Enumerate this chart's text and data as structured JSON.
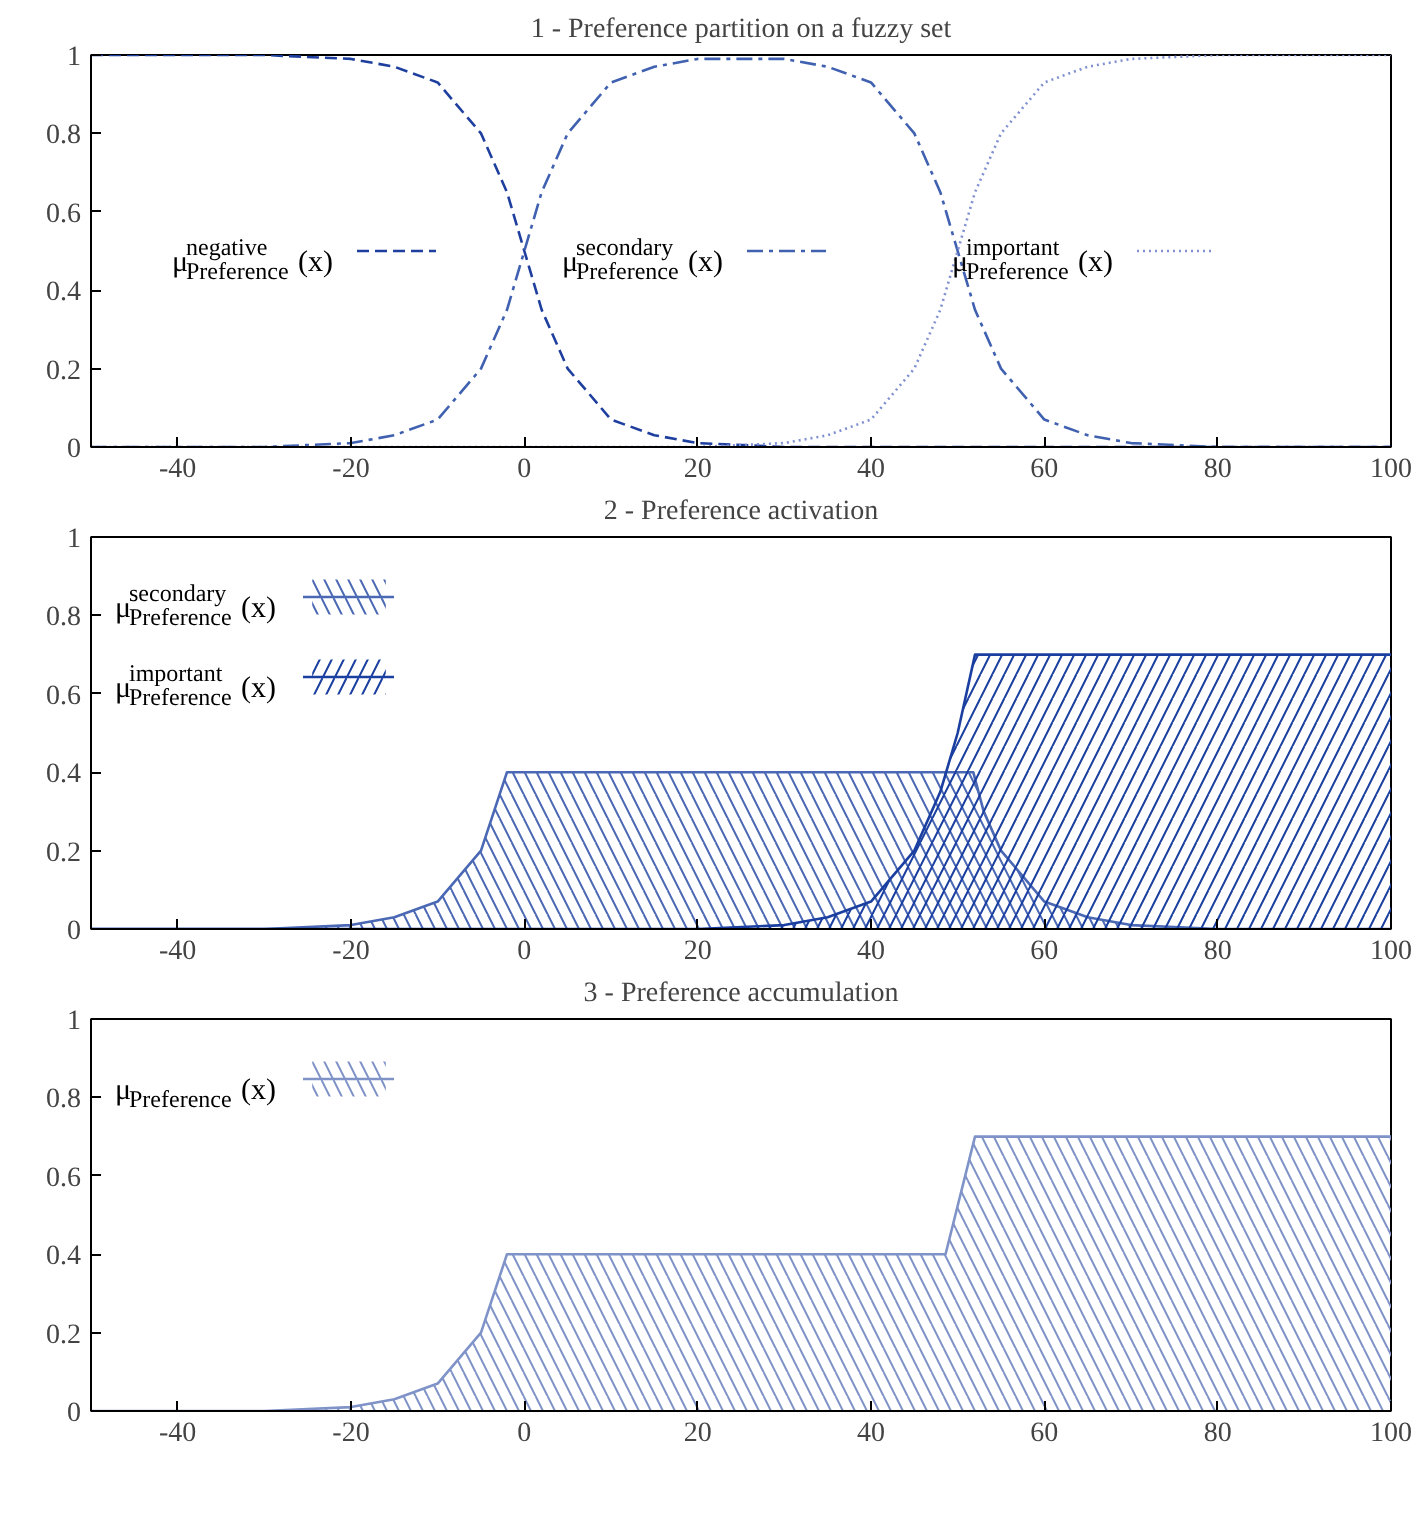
{
  "chart_data": [
    {
      "type": "line",
      "title": "1 - Preference partition on a fuzzy set",
      "xlim": [
        -50,
        100
      ],
      "ylim": [
        0,
        1
      ],
      "xticks": [
        -40,
        -20,
        0,
        20,
        40,
        60,
        80,
        100
      ],
      "yticks": [
        0,
        0.2,
        0.4,
        0.6,
        0.8,
        1
      ],
      "grid": false,
      "legend": "center",
      "series": [
        {
          "name": "μ$^{negative}$$_{Preference}$(x)",
          "color": "#1f3f9f",
          "line_style": "dashed",
          "x": [
            -50,
            -30,
            -20,
            -15,
            -10,
            -5,
            -2,
            0,
            2,
            5,
            10,
            15,
            20,
            30,
            100
          ],
          "values": [
            1,
            1,
            0.99,
            0.97,
            0.93,
            0.8,
            0.65,
            0.5,
            0.35,
            0.2,
            0.07,
            0.03,
            0.01,
            0,
            0
          ]
        },
        {
          "name": "μ$^{secondary}$$_{Preference}$(x)",
          "color": "#4060b0",
          "line_style": "dashdot",
          "x": [
            -50,
            -30,
            -20,
            -15,
            -10,
            -5,
            -2,
            0,
            2,
            5,
            10,
            15,
            20,
            30,
            35,
            40,
            45,
            48,
            50,
            52,
            55,
            60,
            65,
            70,
            80,
            100
          ],
          "values": [
            0,
            0,
            0.01,
            0.03,
            0.07,
            0.2,
            0.35,
            0.5,
            0.65,
            0.8,
            0.93,
            0.97,
            0.99,
            0.99,
            0.97,
            0.93,
            0.8,
            0.65,
            0.5,
            0.35,
            0.2,
            0.07,
            0.03,
            0.01,
            0,
            0
          ]
        },
        {
          "name": "μ$^{important}$$_{Preference}$(x)",
          "color": "#8090d0",
          "line_style": "dotted",
          "x": [
            -50,
            20,
            30,
            35,
            40,
            45,
            48,
            50,
            52,
            55,
            60,
            65,
            70,
            80,
            100
          ],
          "values": [
            0,
            0,
            0.01,
            0.03,
            0.07,
            0.2,
            0.35,
            0.5,
            0.65,
            0.8,
            0.93,
            0.97,
            0.99,
            1,
            1
          ]
        }
      ]
    },
    {
      "type": "area",
      "title": "2 - Preference activation",
      "xlim": [
        -50,
        100
      ],
      "ylim": [
        0,
        1
      ],
      "xticks": [
        -40,
        -20,
        0,
        20,
        40,
        60,
        80,
        100
      ],
      "yticks": [
        0,
        0.2,
        0.4,
        0.6,
        0.8,
        1
      ],
      "grid": false,
      "legend": "top left",
      "series": [
        {
          "name": "μ$^{secondary}$$_{Preference}$(x)",
          "color": "#4a68b4",
          "x": [
            -50,
            -30,
            -20,
            -15,
            -10,
            -5,
            -2,
            51.8,
            53,
            55,
            60,
            65,
            70,
            80,
            100
          ],
          "values": [
            0,
            0,
            0.01,
            0.03,
            0.07,
            0.2,
            0.4,
            0.4,
            0.3,
            0.2,
            0.07,
            0.03,
            0.01,
            0,
            0
          ]
        },
        {
          "name": "μ$^{important}$$_{Preference}$(x)",
          "color": "#1a3fa0",
          "x": [
            -50,
            20,
            30,
            35,
            40,
            45,
            48,
            50,
            52,
            100
          ],
          "values": [
            0,
            0,
            0.01,
            0.03,
            0.07,
            0.2,
            0.35,
            0.5,
            0.7,
            0.7
          ]
        }
      ]
    },
    {
      "type": "area",
      "title": "3 - Preference accumulation",
      "xlim": [
        -50,
        100
      ],
      "ylim": [
        0,
        1
      ],
      "xticks": [
        -40,
        -20,
        0,
        20,
        40,
        60,
        80,
        100
      ],
      "yticks": [
        0,
        0.2,
        0.4,
        0.6,
        0.8,
        1
      ],
      "grid": false,
      "legend": "top left",
      "series": [
        {
          "name": "μ$_{Preference}$(x)",
          "color": "#7f93c8",
          "x": [
            -50,
            -30,
            -20,
            -15,
            -10,
            -5,
            -2,
            48.6,
            52,
            100
          ],
          "values": [
            0,
            0,
            0.01,
            0.03,
            0.07,
            0.2,
            0.4,
            0.4,
            0.7,
            0.7
          ]
        }
      ]
    }
  ]
}
